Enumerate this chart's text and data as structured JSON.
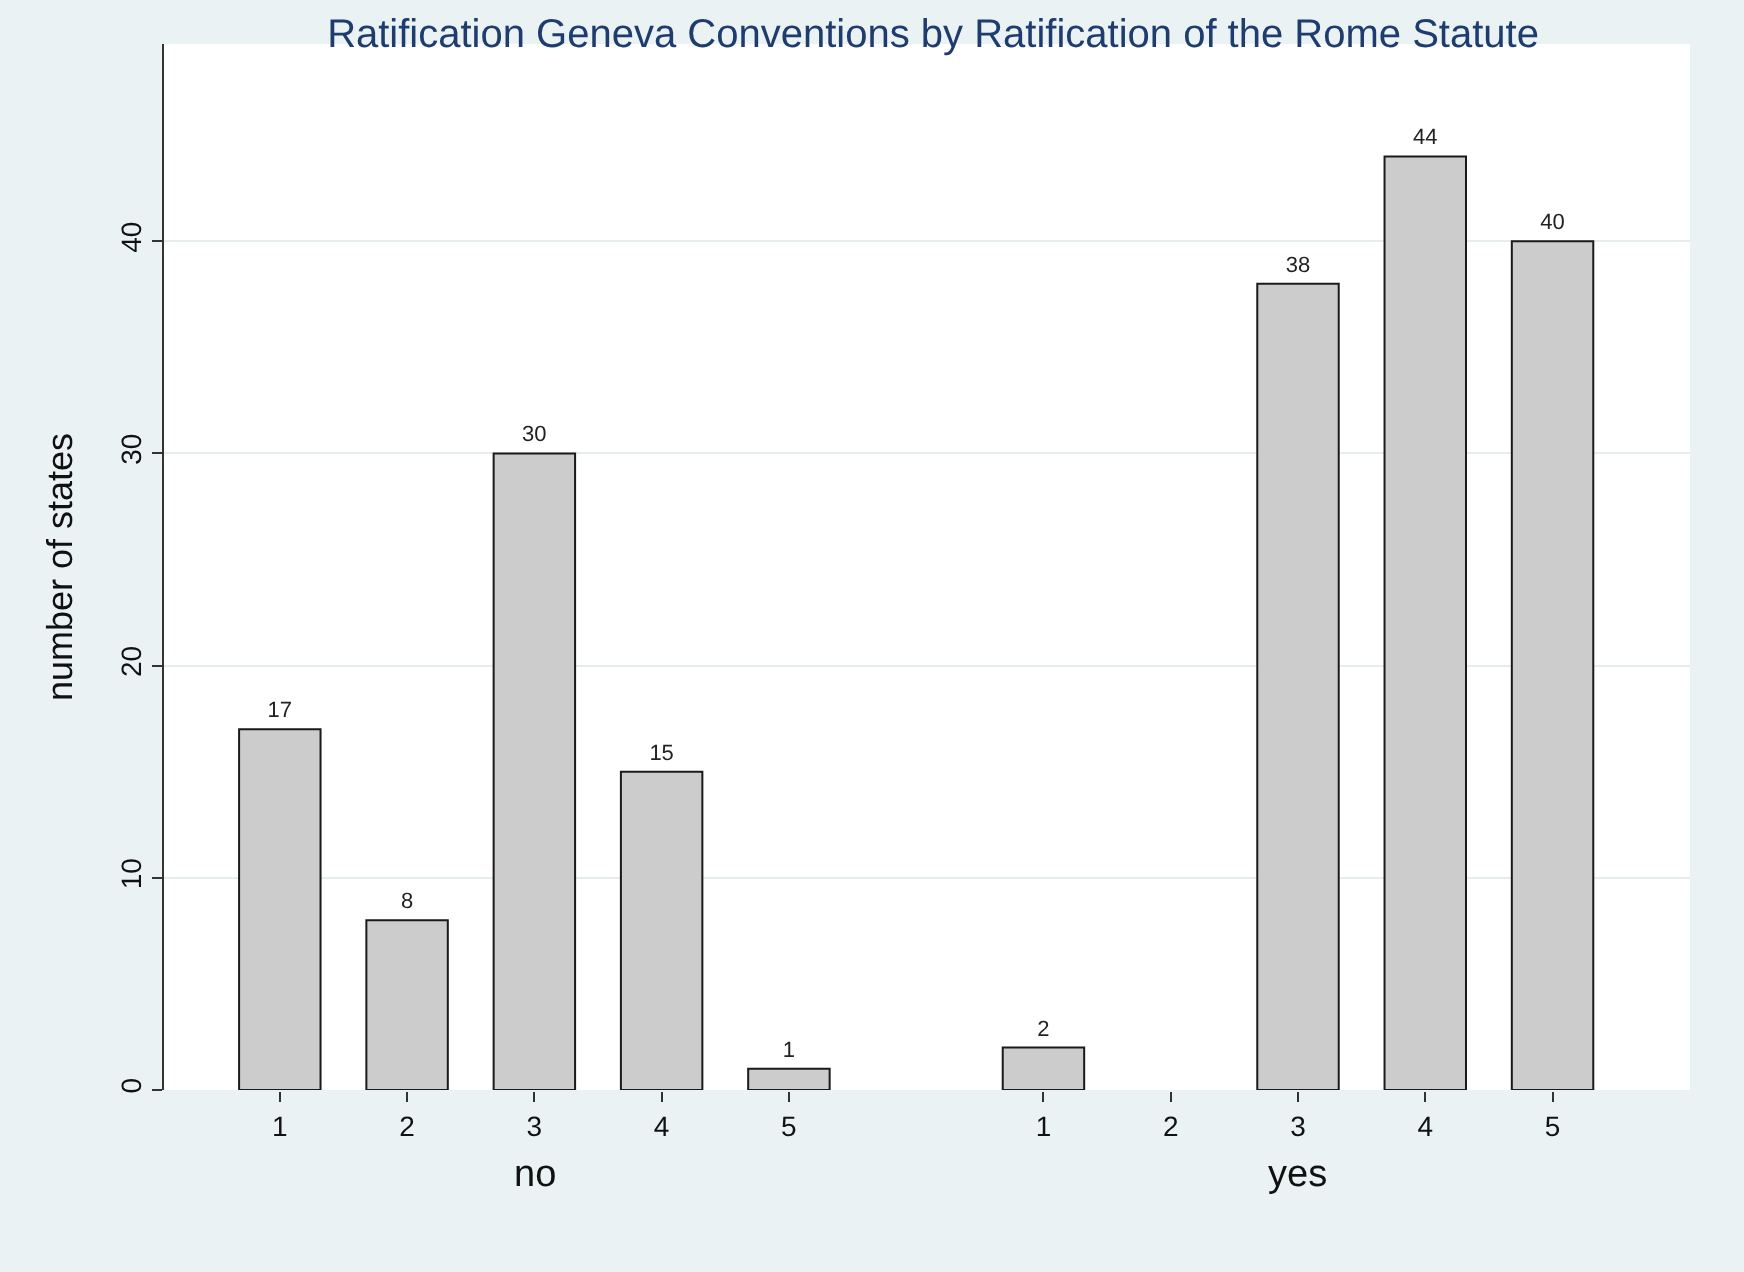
{
  "chart_data": {
    "type": "bar",
    "title": "Ratification Geneva Conventions by Ratification of the Rome Statute",
    "ylabel": "number of states",
    "categories": [
      "1",
      "2",
      "3",
      "4",
      "5",
      null,
      "1",
      "2",
      "3",
      "4",
      "5"
    ],
    "values": [
      17,
      8,
      30,
      15,
      1,
      null,
      2,
      null,
      38,
      44,
      40
    ],
    "color": "#cccccc",
    "ylim": [
      0,
      49.3
    ],
    "yticks": [
      0,
      10,
      20,
      30,
      40
    ],
    "grid": "y",
    "data_labels": true,
    "annotations": [
      "no",
      "yes"
    ]
  }
}
